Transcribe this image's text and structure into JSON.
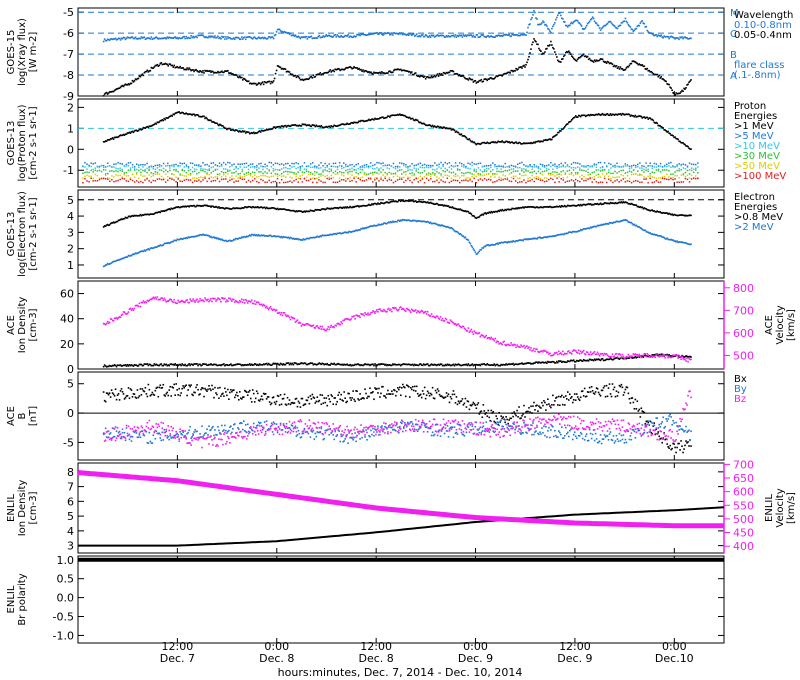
{
  "figure": {
    "xlabel": "hours:minutes, Dec. 7, 2014 - Dec. 10, 2014",
    "x_ticks": [
      {
        "hour": 12,
        "time": "12:00",
        "date": "Dec. 7"
      },
      {
        "hour": 24,
        "time": "0:00",
        "date": "Dec. 8"
      },
      {
        "hour": 36,
        "time": "12:00",
        "date": "Dec. 8"
      },
      {
        "hour": 48,
        "time": "0:00",
        "date": "Dec. 9"
      },
      {
        "hour": 60,
        "time": "12:00",
        "date": "Dec. 9"
      },
      {
        "hour": 72,
        "time": "0:00",
        "date": "Dec.10"
      }
    ],
    "colors": {
      "black": "#000000",
      "blue": "#1e78d2",
      "cyan": "#30c8e8",
      "magenta": "#f020f0",
      "green": "#30c030",
      "yellow": "#d8d000",
      "orange": "#f09018",
      "red": "#e02020"
    }
  },
  "chart_data": [
    {
      "type": "scatter",
      "ylabel": [
        "GOES-15",
        "log(Xray flux)",
        "[W m-2]"
      ],
      "ylim": [
        -9,
        -4.8
      ],
      "y_ticks": [
        -9,
        -8,
        -7,
        -6,
        -5
      ],
      "thresholds": [
        -8,
        -7,
        -6,
        -5
      ],
      "threshold_labels": [
        "A",
        "B",
        "C",
        "M"
      ],
      "legend": [
        "Wavelength",
        "0.10-0.8nm",
        "0.05-0.4nm",
        "flare class",
        "(.1-.8nm)"
      ],
      "series": [
        {
          "name": "0.10-0.8nm",
          "color": "blue",
          "x": [
            3,
            6,
            9,
            12,
            15,
            18,
            21,
            23.5,
            24,
            27,
            30,
            33,
            36,
            39,
            42,
            45,
            48,
            51,
            54,
            55,
            55.5,
            56,
            57,
            58,
            59,
            60,
            61,
            62,
            63,
            64,
            65,
            66,
            67,
            68,
            69,
            70,
            72,
            74
          ],
          "y": [
            -6.3,
            -6.2,
            -6.2,
            -6.2,
            -6.1,
            -6.2,
            -6.2,
            -6.2,
            -5.8,
            -6.2,
            -6.1,
            -6.1,
            -6.0,
            -6.0,
            -6.1,
            -6.1,
            -6.1,
            -6.1,
            -6.0,
            -4.9,
            -5.6,
            -5.4,
            -5.9,
            -5.0,
            -5.7,
            -5.3,
            -5.8,
            -5.2,
            -5.8,
            -5.4,
            -5.7,
            -5.3,
            -5.9,
            -5.4,
            -6.0,
            -6.1,
            -6.2,
            -6.2
          ]
        },
        {
          "name": "0.05-0.4nm",
          "color": "black",
          "x": [
            3,
            6,
            9,
            10,
            12,
            15,
            18,
            21,
            23.5,
            24,
            27,
            30,
            33,
            36,
            39,
            42,
            45,
            48,
            51,
            54,
            55,
            56,
            57,
            58,
            59,
            60,
            61,
            62,
            63,
            64,
            65,
            66,
            67,
            68,
            69,
            70,
            71,
            72,
            73,
            74
          ],
          "y": [
            -8.9,
            -8.4,
            -7.6,
            -7.4,
            -7.6,
            -7.8,
            -7.8,
            -8.4,
            -8.3,
            -7.5,
            -8.2,
            -7.8,
            -7.6,
            -7.9,
            -7.7,
            -8.1,
            -7.8,
            -8.3,
            -8.0,
            -7.5,
            -6.2,
            -7.0,
            -6.4,
            -7.4,
            -6.8,
            -7.3,
            -7.0,
            -7.3,
            -7.2,
            -7.4,
            -7.6,
            -7.7,
            -7.3,
            -7.5,
            -7.8,
            -8.0,
            -8.3,
            -8.9,
            -8.7,
            -8.2
          ]
        }
      ]
    },
    {
      "type": "scatter",
      "ylabel": [
        "GOES-13",
        "log(Proton flux)",
        "[cm-2 s-1 sr-1]"
      ],
      "ylim": [
        -1.8,
        2.4
      ],
      "y_ticks": [
        -1,
        0,
        1,
        2
      ],
      "thresholds": [
        1
      ],
      "legend": [
        "Proton",
        "Energies",
        ">1 MeV",
        ">5 MeV",
        ">10 MeV",
        ">30 MeV",
        ">50 MeV",
        ">100 MeV"
      ],
      "series": [
        {
          "name": ">1 MeV",
          "color": "black",
          "x": [
            3,
            6,
            9,
            12,
            15,
            18,
            21,
            24,
            27,
            30,
            33,
            36,
            39,
            42,
            45,
            48,
            51,
            54,
            57,
            60,
            63,
            66,
            69,
            72,
            74
          ],
          "y": [
            0.4,
            0.8,
            1.2,
            1.8,
            1.6,
            1.0,
            0.8,
            1.1,
            1.2,
            1.1,
            1.3,
            1.5,
            1.7,
            1.2,
            1.0,
            0.3,
            0.4,
            0.3,
            0.5,
            1.6,
            1.7,
            1.7,
            1.5,
            0.6,
            0.0
          ]
        },
        {
          "name": ">5 MeV",
          "color": "blue",
          "level": -0.7
        },
        {
          "name": ">10 MeV",
          "color": "cyan",
          "level": -0.85
        },
        {
          "name": ">30 MeV",
          "color": "green",
          "level": -1.05
        },
        {
          "name": ">50 MeV",
          "color": "yellow",
          "level": -1.25
        },
        {
          "name": ">100 MeV",
          "color": "red",
          "level": -1.45
        }
      ]
    },
    {
      "type": "line",
      "ylabel": [
        "GOES-13",
        "log(Electron flux)",
        "[cm-2 s-1 sr-1]"
      ],
      "ylim": [
        0.2,
        5.6
      ],
      "y_ticks": [
        1,
        2,
        3,
        4,
        5
      ],
      "thresholds": [
        5
      ],
      "legend": [
        "Electron",
        "Energies",
        ">0.8 MeV",
        ">2 MeV"
      ],
      "series": [
        {
          "name": ">0.8 MeV",
          "color": "black",
          "x": [
            3,
            6,
            9,
            12,
            15,
            18,
            21,
            24,
            27,
            30,
            33,
            36,
            39,
            42,
            45,
            47,
            48,
            49,
            51,
            54,
            57,
            60,
            63,
            66,
            69,
            72,
            74
          ],
          "y": [
            3.4,
            4.0,
            4.2,
            4.6,
            4.7,
            4.5,
            4.6,
            4.5,
            4.3,
            4.5,
            4.6,
            4.8,
            5.0,
            4.9,
            4.6,
            4.3,
            3.9,
            4.2,
            4.4,
            4.6,
            4.6,
            4.7,
            4.8,
            4.9,
            4.4,
            4.1,
            4.1
          ]
        },
        {
          "name": ">2 MeV",
          "color": "blue",
          "x": [
            3,
            6,
            9,
            12,
            15,
            18,
            21,
            24,
            27,
            30,
            33,
            36,
            39,
            42,
            45,
            47,
            48,
            49,
            51,
            54,
            57,
            60,
            63,
            66,
            69,
            72,
            74
          ],
          "y": [
            1.0,
            1.6,
            2.1,
            2.6,
            2.9,
            2.5,
            2.9,
            2.8,
            2.6,
            2.9,
            3.1,
            3.5,
            3.8,
            3.7,
            3.3,
            2.6,
            1.7,
            2.2,
            2.4,
            2.6,
            2.8,
            3.1,
            3.5,
            3.8,
            3.0,
            2.5,
            2.3
          ]
        }
      ]
    },
    {
      "type": "scatter",
      "ylabel": [
        "ACE",
        "Ion Density",
        "[cm-3]"
      ],
      "ylim": [
        0,
        70
      ],
      "y_ticks": [
        0,
        20,
        40,
        60
      ],
      "ylabel_right": [
        "ACE",
        "Velocity",
        "[km/s]"
      ],
      "ylim_right": [
        440,
        830
      ],
      "y_ticks_right": [
        500,
        600,
        700,
        800
      ],
      "series": [
        {
          "name": "Ion Density",
          "color": "black",
          "x": [
            3,
            9,
            15,
            21,
            27,
            33,
            39,
            45,
            51,
            57,
            63,
            67,
            70,
            74
          ],
          "y": [
            3,
            4,
            4,
            4,
            5,
            4,
            4,
            4,
            4,
            6,
            8,
            10,
            12,
            10
          ]
        },
        {
          "name": "Velocity",
          "color": "magenta",
          "axis": "right",
          "x": [
            3,
            6,
            9,
            12,
            15,
            18,
            21,
            24,
            27,
            30,
            33,
            36,
            39,
            42,
            45,
            48,
            51,
            54,
            57,
            60,
            63,
            66,
            69,
            72,
            74
          ],
          "y": [
            640,
            700,
            760,
            740,
            750,
            750,
            740,
            700,
            640,
            620,
            670,
            700,
            710,
            690,
            650,
            600,
            560,
            540,
            510,
            520,
            510,
            500,
            505,
            500,
            480
          ]
        }
      ]
    },
    {
      "type": "scatter",
      "ylabel": [
        "ACE",
        "B",
        "[nT]"
      ],
      "ylim": [
        -8,
        7
      ],
      "y_ticks": [
        -5,
        0,
        5
      ],
      "legend": [
        "Bx",
        "By",
        "Bz"
      ],
      "series": [
        {
          "name": "Bx",
          "color": "black",
          "x": [
            3,
            9,
            15,
            21,
            27,
            33,
            39,
            45,
            51,
            57,
            63,
            66,
            69,
            72,
            74
          ],
          "y": [
            3,
            4,
            4,
            3,
            2,
            3,
            4,
            3,
            -1,
            2,
            4,
            4,
            -2,
            -6,
            -5
          ]
        },
        {
          "name": "By",
          "color": "blue",
          "x": [
            3,
            9,
            15,
            21,
            27,
            33,
            39,
            45,
            51,
            57,
            63,
            66,
            69,
            72,
            74
          ],
          "y": [
            -3,
            -4,
            -3,
            -2,
            -3,
            -4,
            -2,
            -3,
            -2,
            -3,
            -4,
            -4,
            -2,
            -1,
            -4
          ]
        },
        {
          "name": "Bz",
          "color": "magenta",
          "x": [
            3,
            9,
            15,
            21,
            27,
            33,
            39,
            45,
            51,
            57,
            63,
            66,
            69,
            72,
            74
          ],
          "y": [
            -4,
            -2,
            -5,
            -3,
            -2,
            -3,
            -2,
            -2,
            -3,
            -1,
            -2,
            -2,
            -3,
            -4,
            4
          ]
        }
      ]
    },
    {
      "type": "line",
      "ylabel": [
        "ENLIL",
        "Ion Density",
        "[cm-3]"
      ],
      "ylim": [
        2.5,
        8.6
      ],
      "y_ticks": [
        3,
        4,
        5,
        6,
        7,
        8
      ],
      "ylabel_right": [
        "ENLIL",
        "Velocity",
        "[km/s]"
      ],
      "ylim_right": [
        375,
        705
      ],
      "y_ticks_right": [
        400,
        450,
        500,
        550,
        600,
        650,
        700
      ],
      "series": [
        {
          "name": "Ion Density",
          "color": "black",
          "x": [
            0,
            12,
            24,
            36,
            48,
            60,
            72,
            78
          ],
          "y": [
            3.0,
            3.0,
            3.3,
            3.9,
            4.6,
            5.1,
            5.4,
            5.6
          ]
        },
        {
          "name": "Velocity",
          "color": "magenta",
          "axis": "right",
          "x": [
            0,
            12,
            24,
            36,
            48,
            60,
            72,
            78
          ],
          "y": [
            670,
            640,
            590,
            540,
            505,
            485,
            475,
            475
          ]
        }
      ]
    },
    {
      "type": "line",
      "ylabel": [
        "ENLIL",
        "Br polarity"
      ],
      "ylim": [
        -1.2,
        1.1
      ],
      "y_ticks": [
        -1.0,
        -0.5,
        0.0,
        0.5,
        1.0
      ],
      "y_tick_labels": [
        "-1.0",
        "-0.5",
        "0.0",
        "0.5",
        "1.0"
      ],
      "series": [
        {
          "name": "Br polarity",
          "color": "black",
          "x": [
            0,
            78
          ],
          "y": [
            1,
            1
          ]
        }
      ]
    }
  ]
}
